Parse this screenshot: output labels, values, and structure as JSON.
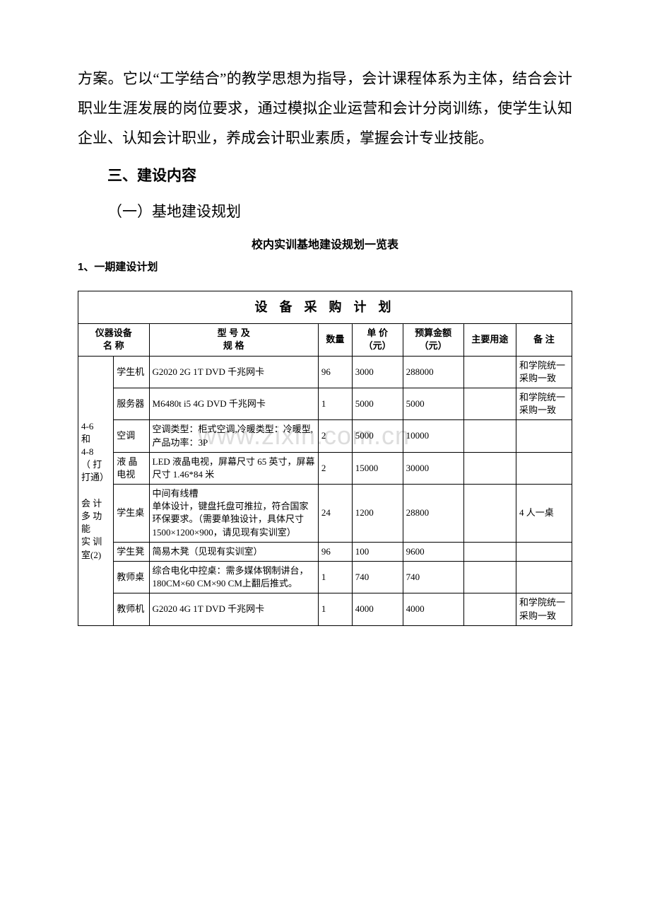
{
  "paragraph": "方案。它以“工学结合”的教学思想为指导，会计课程体系为主体，结合会计职业生涯发展的岗位要求，通过模拟企业运营和会计分岗训练，使学生认知企业、认知会计职业，养成会计职业素质，掌握会计专业技能。",
  "section_heading": "三、建设内容",
  "sub_heading": "（一）基地建设规划",
  "table_caption": "校内实训基地建设规划一览表",
  "plan_label": "1、一期建设计划",
  "watermark": "www.zixin.com.cn",
  "table": {
    "title": "设 备 采 购 计 划",
    "headers": {
      "device_name": "仪器设备\n名  称",
      "model": "型  号  及\n规    格",
      "qty": "数量",
      "unit_price": "单  价\n（元）",
      "budget": "预算金额\n（元）",
      "use": "主要用途",
      "note": "备  注"
    },
    "room_label": "4-6\n和\n4-8\n（ 打\n打通）\n\n会 计\n多 功\n能\n实 训\n室(2)",
    "rows": [
      {
        "item": "学生机",
        "spec": "G2020 2G 1T DVD 千兆网卡",
        "qty": "96",
        "price": "3000",
        "budget": "288000",
        "use": "",
        "note": "和学院统一采购一致"
      },
      {
        "item": "服务器",
        "spec": "M6480t i5 4G DVD 千兆网卡",
        "qty": "1",
        "price": "5000",
        "budget": "5000",
        "use": "",
        "note": "和学院统一采购一致"
      },
      {
        "item": "空调",
        "spec": "空调类型：柜式空调,冷暖类型：冷暖型,产品功率：3P",
        "qty": "2",
        "price": "5000",
        "budget": "10000",
        "use": "",
        "note": ""
      },
      {
        "item": "液 晶电视",
        "spec": "LED 液晶电视，屏幕尺寸 65 英寸，屏幕尺寸 1.46*84 米",
        "qty": "2",
        "price": "15000",
        "budget": "30000",
        "use": "",
        "note": ""
      },
      {
        "item": "学生桌",
        "spec": "中间有线槽\n单体设计，键盘托盘可推拉，符合国家环保要求。（需要单独设计，具体尺寸 1500×1200×900，请见现有实训室）",
        "qty": "24",
        "price": "1200",
        "budget": "28800",
        "use": "",
        "note": "4 人一桌"
      },
      {
        "item": "学生凳",
        "spec": "简易木凳（见现有实训室）",
        "qty": "96",
        "price": "100",
        "budget": "9600",
        "use": "",
        "note": ""
      },
      {
        "item": "教师桌",
        "spec": "综合电化中控桌：需多媒体钢制讲台，180CM×60 CM×90 CM上翻后推式。",
        "qty": "1",
        "price": "740",
        "budget": "740",
        "use": "",
        "note": ""
      },
      {
        "item": "教师机",
        "spec": "G2020 4G 1T DVD 千兆网卡",
        "qty": "1",
        "price": "4000",
        "budget": "4000",
        "use": "",
        "note": "和学院统一采购一致"
      }
    ]
  }
}
